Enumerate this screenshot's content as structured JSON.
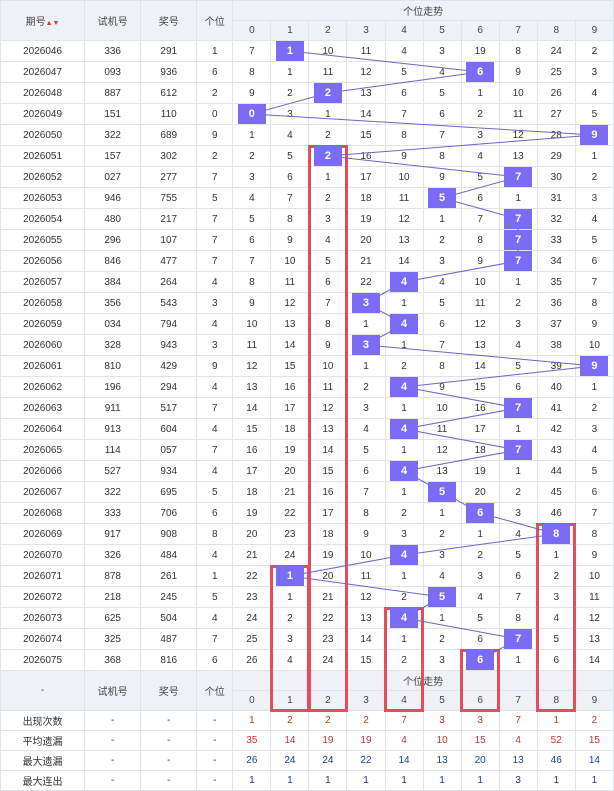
{
  "header": {
    "period": "期号",
    "sort_arrow": "▲▼",
    "test_no": "试机号",
    "prize_no": "奖号",
    "unit": "个位",
    "trend": "个位走势",
    "digits": [
      "0",
      "1",
      "2",
      "3",
      "4",
      "5",
      "6",
      "7",
      "8",
      "9"
    ]
  },
  "rows": [
    {
      "period": "2026046",
      "test": "336",
      "prize": "291",
      "unit": 1,
      "cells": [
        7,
        "1",
        10,
        11,
        4,
        3,
        19,
        8,
        24,
        2
      ]
    },
    {
      "period": "2026047",
      "test": "093",
      "prize": "936",
      "unit": 6,
      "cells": [
        8,
        1,
        11,
        12,
        5,
        4,
        "6",
        9,
        25,
        3
      ]
    },
    {
      "period": "2026048",
      "test": "887",
      "prize": "612",
      "unit": 2,
      "cells": [
        9,
        2,
        "2",
        13,
        6,
        5,
        1,
        10,
        26,
        4
      ]
    },
    {
      "period": "2026049",
      "test": "151",
      "prize": "110",
      "unit": 0,
      "cells": [
        "0",
        3,
        1,
        14,
        7,
        6,
        2,
        11,
        27,
        5
      ]
    },
    {
      "period": "2026050",
      "test": "322",
      "prize": "689",
      "unit": 9,
      "cells": [
        1,
        4,
        2,
        15,
        8,
        7,
        3,
        12,
        28,
        "9"
      ]
    },
    {
      "period": "2026051",
      "test": "157",
      "prize": "302",
      "unit": 2,
      "cells": [
        2,
        5,
        "2",
        16,
        9,
        8,
        4,
        13,
        29,
        1
      ]
    },
    {
      "period": "2026052",
      "test": "027",
      "prize": "277",
      "unit": 7,
      "cells": [
        3,
        6,
        1,
        17,
        10,
        9,
        5,
        "7",
        30,
        2
      ]
    },
    {
      "period": "2026053",
      "test": "946",
      "prize": "755",
      "unit": 5,
      "cells": [
        4,
        7,
        2,
        18,
        11,
        "5",
        6,
        1,
        31,
        3
      ]
    },
    {
      "period": "2026054",
      "test": "480",
      "prize": "217",
      "unit": 7,
      "cells": [
        5,
        8,
        3,
        19,
        12,
        1,
        7,
        "7",
        32,
        4
      ]
    },
    {
      "period": "2026055",
      "test": "296",
      "prize": "107",
      "unit": 7,
      "cells": [
        6,
        9,
        4,
        20,
        13,
        2,
        8,
        "7",
        33,
        5
      ]
    },
    {
      "period": "2026056",
      "test": "846",
      "prize": "477",
      "unit": 7,
      "cells": [
        7,
        10,
        5,
        21,
        14,
        3,
        9,
        "7",
        34,
        6
      ]
    },
    {
      "period": "2026057",
      "test": "384",
      "prize": "264",
      "unit": 4,
      "cells": [
        8,
        11,
        6,
        22,
        "4",
        4,
        10,
        1,
        35,
        7
      ]
    },
    {
      "period": "2026058",
      "test": "356",
      "prize": "543",
      "unit": 3,
      "cells": [
        9,
        12,
        7,
        "3",
        1,
        5,
        11,
        2,
        36,
        8
      ]
    },
    {
      "period": "2026059",
      "test": "034",
      "prize": "794",
      "unit": 4,
      "cells": [
        10,
        13,
        8,
        1,
        "4",
        6,
        12,
        3,
        37,
        9
      ]
    },
    {
      "period": "2026060",
      "test": "328",
      "prize": "943",
      "unit": 3,
      "cells": [
        11,
        14,
        9,
        "3",
        1,
        7,
        13,
        4,
        38,
        10
      ]
    },
    {
      "period": "2026061",
      "test": "810",
      "prize": "429",
      "unit": 9,
      "cells": [
        12,
        15,
        10,
        1,
        2,
        8,
        14,
        5,
        39,
        "9"
      ]
    },
    {
      "period": "2026062",
      "test": "196",
      "prize": "294",
      "unit": 4,
      "cells": [
        13,
        16,
        11,
        2,
        "4",
        9,
        15,
        6,
        40,
        1
      ]
    },
    {
      "period": "2026063",
      "test": "911",
      "prize": "517",
      "unit": 7,
      "cells": [
        14,
        17,
        12,
        3,
        1,
        10,
        16,
        "7",
        41,
        2
      ]
    },
    {
      "period": "2026064",
      "test": "913",
      "prize": "604",
      "unit": 4,
      "cells": [
        15,
        18,
        13,
        4,
        "4",
        11,
        17,
        1,
        42,
        3
      ]
    },
    {
      "period": "2026065",
      "test": "114",
      "prize": "057",
      "unit": 7,
      "cells": [
        16,
        19,
        14,
        5,
        1,
        12,
        18,
        "7",
        43,
        4
      ]
    },
    {
      "period": "2026066",
      "test": "527",
      "prize": "934",
      "unit": 4,
      "cells": [
        17,
        20,
        15,
        6,
        "4",
        13,
        19,
        1,
        44,
        5
      ]
    },
    {
      "period": "2026067",
      "test": "322",
      "prize": "695",
      "unit": 5,
      "cells": [
        18,
        21,
        16,
        7,
        1,
        "5",
        20,
        2,
        45,
        6
      ]
    },
    {
      "period": "2026068",
      "test": "333",
      "prize": "706",
      "unit": 6,
      "cells": [
        19,
        22,
        17,
        8,
        2,
        1,
        "6",
        3,
        46,
        7
      ]
    },
    {
      "period": "2026069",
      "test": "917",
      "prize": "908",
      "unit": 8,
      "cells": [
        20,
        23,
        18,
        9,
        3,
        2,
        1,
        4,
        "8",
        8
      ]
    },
    {
      "period": "2026070",
      "test": "326",
      "prize": "484",
      "unit": 4,
      "cells": [
        21,
        24,
        19,
        10,
        "4",
        3,
        2,
        5,
        1,
        9
      ]
    },
    {
      "period": "2026071",
      "test": "878",
      "prize": "261",
      "unit": 1,
      "cells": [
        22,
        "1",
        20,
        11,
        1,
        4,
        3,
        6,
        2,
        10
      ]
    },
    {
      "period": "2026072",
      "test": "218",
      "prize": "245",
      "unit": 5,
      "cells": [
        23,
        1,
        21,
        12,
        2,
        "5",
        4,
        7,
        3,
        11
      ]
    },
    {
      "period": "2026073",
      "test": "625",
      "prize": "504",
      "unit": 4,
      "cells": [
        24,
        2,
        22,
        13,
        "4",
        1,
        5,
        8,
        4,
        12
      ]
    },
    {
      "period": "2026074",
      "test": "325",
      "prize": "487",
      "unit": 7,
      "cells": [
        25,
        3,
        23,
        14,
        1,
        2,
        6,
        "7",
        5,
        13
      ]
    },
    {
      "period": "2026075",
      "test": "368",
      "prize": "816",
      "unit": 6,
      "cells": [
        26,
        4,
        24,
        15,
        2,
        3,
        "6",
        1,
        6,
        14
      ]
    }
  ],
  "footer_header": {
    "period": "-",
    "test_no": "试机号",
    "prize_no": "奖号",
    "unit": "个位",
    "trend": "个位走势",
    "digits": [
      "0",
      "1",
      "2",
      "3",
      "4",
      "5",
      "6",
      "7",
      "8",
      "9"
    ]
  },
  "stats": [
    {
      "label": "出现次数",
      "cls": "c",
      "values": [
        1,
        2,
        2,
        2,
        7,
        3,
        3,
        7,
        1,
        2
      ]
    },
    {
      "label": "平均遗漏",
      "cls": "a",
      "values": [
        35,
        14,
        19,
        19,
        4,
        10,
        15,
        4,
        52,
        15
      ]
    },
    {
      "label": "最大遗漏",
      "cls": "m",
      "values": [
        26,
        24,
        24,
        22,
        14,
        13,
        20,
        13,
        46,
        14
      ]
    },
    {
      "label": "最大连出",
      "cls": "x",
      "values": [
        1,
        1,
        1,
        1,
        1,
        1,
        1,
        3,
        1,
        1
      ]
    }
  ],
  "stat_dash": "-",
  "colors": {
    "hit": "#7b6cf6",
    "line": "#6f63c8",
    "highlight": "#e84c5c",
    "header_bg": "#eef1f6"
  }
}
